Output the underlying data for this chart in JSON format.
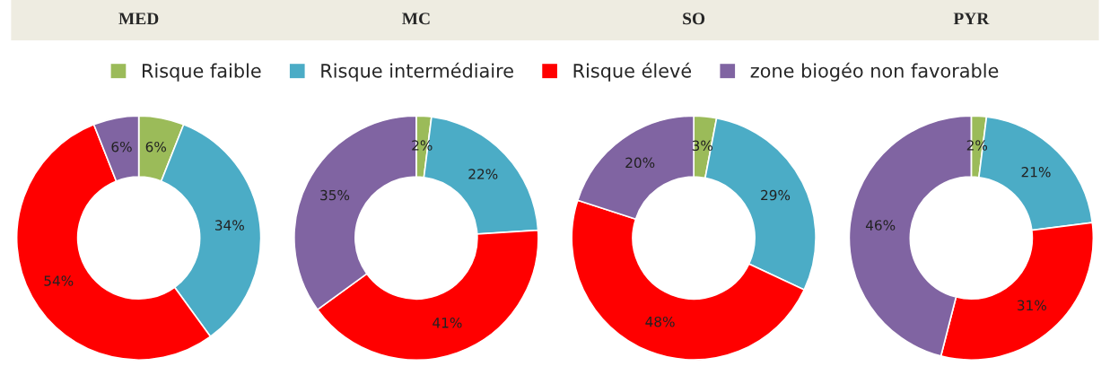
{
  "chart_data": [
    {
      "type": "donut",
      "title": "MED",
      "categories": [
        "Risque faible",
        "Risque intermédiaire",
        "Risque élevé",
        "zone biogéo non favorable"
      ],
      "values": [
        6,
        34,
        54,
        6
      ],
      "value_labels": [
        "6%",
        "34%",
        "54%",
        "6%"
      ],
      "colors": [
        "#9bbb59",
        "#4bacc6",
        "#ff0000",
        "#8064a2"
      ],
      "legend": "top"
    },
    {
      "type": "donut",
      "title": "MC",
      "categories": [
        null,
        null,
        null,
        null
      ],
      "values": [
        2,
        22,
        41,
        35
      ],
      "value_labels": [
        "2%",
        "22%",
        "41%",
        "35%"
      ],
      "colors": [
        "#9bbb59",
        "#4bacc6",
        "#ff0000",
        "#8064a2"
      ]
    },
    {
      "type": "donut",
      "title": "SO",
      "categories": [
        null,
        null,
        null,
        null
      ],
      "values": [
        3,
        29,
        48,
        20
      ],
      "value_labels": [
        "3%",
        "29%",
        "48%",
        "20%"
      ],
      "colors": [
        "#9bbb59",
        "#4bacc6",
        "#ff0000",
        "#8064a2"
      ]
    },
    {
      "type": "donut",
      "title": "PYR",
      "categories": [
        null,
        null,
        null,
        null
      ],
      "values": [
        2,
        21,
        31,
        46
      ],
      "value_labels": [
        "2%",
        "21%",
        "31%",
        "46%"
      ],
      "colors": [
        "#9bbb59",
        "#4bacc6",
        "#ff0000",
        "#8064a2"
      ]
    }
  ]
}
